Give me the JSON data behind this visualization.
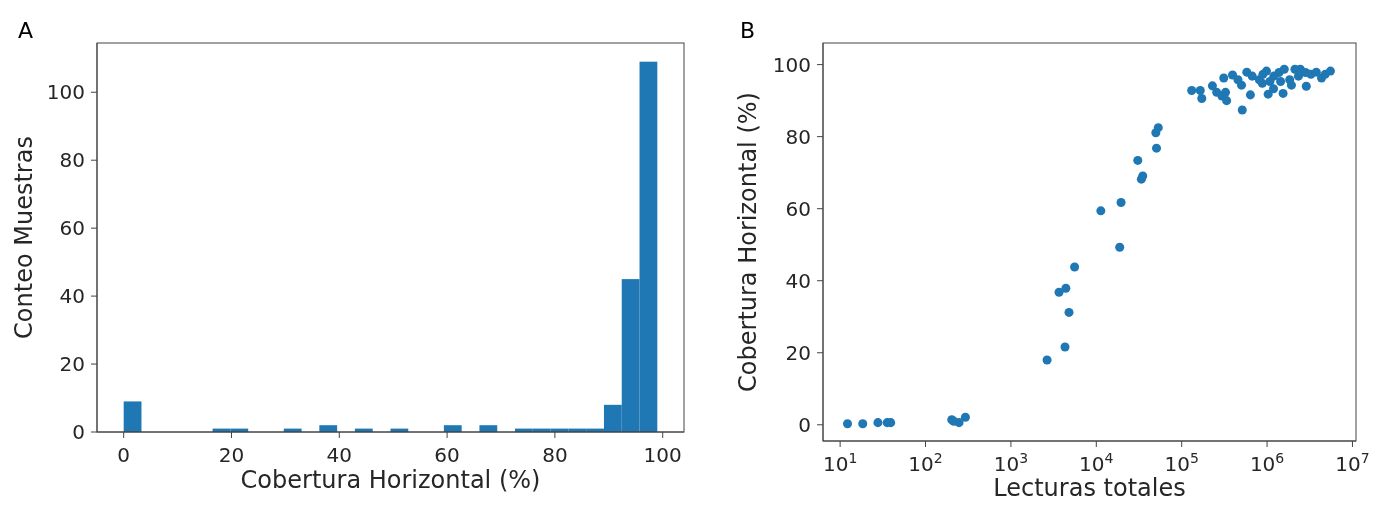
{
  "chart_data": [
    {
      "type": "histogram",
      "title": "A",
      "xlabel": "Cobertura Horizontal (%)",
      "ylabel": "Conteo Muestras",
      "color": "#1f77b4",
      "bins": [
        0,
        3.3,
        6.6,
        9.9,
        13.2,
        16.5,
        19.8,
        23.1,
        26.4,
        29.7,
        33,
        36.3,
        39.6,
        42.9,
        46.2,
        49.5,
        52.8,
        56.1,
        59.4,
        62.7,
        66,
        69.3,
        72.6,
        75.9,
        79.2,
        82.5,
        85.8,
        89.1,
        92.4,
        95.7,
        99
      ],
      "values": [
        9,
        0,
        0,
        0,
        0,
        1,
        1,
        0,
        0,
        1,
        0,
        2,
        0,
        1,
        0,
        1,
        0,
        0,
        2,
        0,
        2,
        0,
        1,
        1,
        1,
        1,
        1,
        8,
        45,
        109
      ],
      "xlim": [
        -4.95,
        103.95
      ],
      "xticks": [
        0,
        20,
        40,
        60,
        80,
        100
      ],
      "ylim": [
        0,
        114.5
      ],
      "yticks": [
        0,
        20,
        40,
        60,
        80,
        100
      ]
    },
    {
      "type": "scatter",
      "title": "B",
      "xlabel": "Lecturas totales",
      "ylabel": "Cobertura Horizontal (%)",
      "color": "#1f77b4",
      "marker": "circle",
      "log": "x",
      "x": [
        12.2,
        18.4,
        27.7,
        35.6,
        39.1,
        203,
        247,
        214,
        293,
        2650,
        4300,
        3660,
        4400,
        4790,
        5570,
        11300,
        18800,
        19500,
        30600,
        33700,
        35000,
        49800,
        53200,
        50700,
        131000,
        165000,
        172000,
        229000,
        257000,
        296000,
        336000,
        326000,
        311000,
        394000,
        512000,
        638000,
        502000,
        579000,
        456000,
        670000,
        893000,
        984000,
        1030000,
        880000,
        1190000,
        1540000,
        1380000,
        1590000,
        1840000,
        2120000,
        2450000,
        1930000,
        2330000,
        2820000,
        2880000,
        3260000,
        3770000,
        4340000,
        4790000,
        5520000,
        1440000,
        1200000,
        811000,
        1080000
      ],
      "values": [
        0.3,
        0.3,
        0.6,
        0.6,
        0.6,
        1.4,
        0.6,
        1.0,
        2.1,
        18.0,
        21.6,
        36.8,
        37.9,
        31.2,
        43.8,
        59.4,
        49.3,
        61.7,
        73.4,
        68.2,
        69.1,
        81.1,
        82.5,
        76.8,
        92.8,
        92.8,
        90.6,
        94.1,
        92.3,
        91.3,
        90.0,
        92.3,
        96.3,
        97.1,
        87.4,
        91.6,
        94.3,
        97.9,
        95.8,
        96.8,
        97.3,
        98.2,
        91.8,
        94.8,
        93.3,
        92.0,
        97.8,
        98.7,
        95.8,
        98.7,
        98.7,
        94.3,
        96.8,
        97.8,
        94.0,
        97.3,
        97.9,
        96.3,
        97.3,
        98.2,
        95.3,
        96.8,
        95.8,
        95.3
      ],
      "xlim": [
        6.3,
        11000000
      ],
      "xticks": [
        {
          "value": 10,
          "label": "10$^{1}$"
        },
        {
          "value": 100,
          "label": "10$^{2}$"
        },
        {
          "value": 1000,
          "label": "10$^{3}$"
        },
        {
          "value": 10000,
          "label": "10$^{4}$"
        },
        {
          "value": 100000,
          "label": "10$^{5}$"
        },
        {
          "value": 1000000,
          "label": "10$^{6}$"
        },
        {
          "value": 10000000,
          "label": "10$^{7}$"
        }
      ],
      "ylim": [
        -4.5,
        106
      ],
      "yticks": [
        0,
        20,
        40,
        60,
        80,
        100
      ]
    }
  ]
}
